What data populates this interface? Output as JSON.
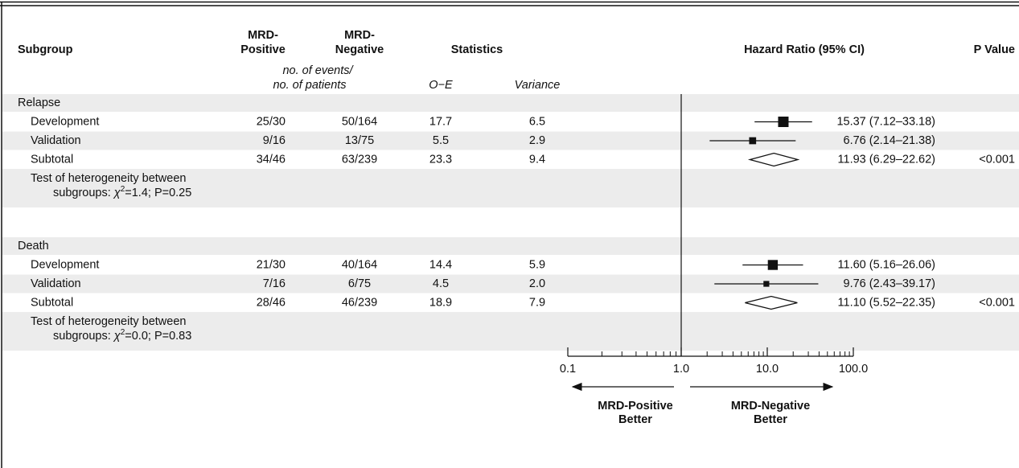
{
  "chart_data": {
    "type": "forest",
    "headers": {
      "subgroup": "Subgroup",
      "mrd_pos": [
        "MRD-",
        "Positive"
      ],
      "mrd_neg": [
        "MRD-",
        "Negative"
      ],
      "statistics": "Statistics",
      "hazard_ratio": "Hazard Ratio (95% CI)",
      "p_value": "P Value",
      "events": [
        "no. of events/",
        "no. of patients"
      ],
      "oe": "O−E",
      "variance": "Variance"
    },
    "groups": [
      {
        "label": "Relapse",
        "rows": [
          {
            "label": "Development",
            "mrd_pos": "25/30",
            "mrd_neg": "50/164",
            "oe": "17.7",
            "variance": "6.5",
            "hr": 15.37,
            "lo": 7.12,
            "hi": 33.18,
            "hr_label": "15.37 (7.12–33.18)"
          },
          {
            "label": "Validation",
            "mrd_pos": "9/16",
            "mrd_neg": "13/75",
            "oe": "5.5",
            "variance": "2.9",
            "hr": 6.76,
            "lo": 2.14,
            "hi": 21.38,
            "hr_label": "6.76 (2.14–21.38)"
          }
        ],
        "subtotal": {
          "label": "Subtotal",
          "mrd_pos": "34/46",
          "mrd_neg": "63/239",
          "oe": "23.3",
          "variance": "9.4",
          "hr": 11.93,
          "lo": 6.29,
          "hi": 22.62,
          "hr_label": "11.93 (6.29–22.62)",
          "p_value": "<0.001"
        },
        "heterogeneity": [
          "Test of heterogeneity between",
          "subgroups: ",
          "χ",
          "2",
          "=1.4; P=0.25"
        ]
      },
      {
        "label": "Death",
        "rows": [
          {
            "label": "Development",
            "mrd_pos": "21/30",
            "mrd_neg": "40/164",
            "oe": "14.4",
            "variance": "5.9",
            "hr": 11.6,
            "lo": 5.16,
            "hi": 26.06,
            "hr_label": "11.60 (5.16–26.06)"
          },
          {
            "label": "Validation",
            "mrd_pos": "7/16",
            "mrd_neg": "6/75",
            "oe": "4.5",
            "variance": "2.0",
            "hr": 9.76,
            "lo": 2.43,
            "hi": 39.17,
            "hr_label": "9.76 (2.43–39.17)"
          }
        ],
        "subtotal": {
          "label": "Subtotal",
          "mrd_pos": "28/46",
          "mrd_neg": "46/239",
          "oe": "18.9",
          "variance": "7.9",
          "hr": 11.1,
          "lo": 5.52,
          "hi": 22.35,
          "hr_label": "11.10 (5.52–22.35)",
          "p_value": "<0.001"
        },
        "heterogeneity": [
          "Test of heterogeneity between",
          "subgroups: ",
          "χ",
          "2",
          "=0.0; P=0.83"
        ]
      }
    ],
    "log_x": true,
    "xlim": [
      0.1,
      100
    ],
    "xticks": [
      {
        "value": 0.1,
        "label": "0.1"
      },
      {
        "value": 1,
        "label": "1.0"
      },
      {
        "value": 10,
        "label": "10.0"
      },
      {
        "value": 100,
        "label": "100.0"
      }
    ],
    "left_label": [
      "MRD-Positive",
      "Better"
    ],
    "right_label": [
      "MRD-Negative",
      "Better"
    ],
    "band_color": "#ececec"
  }
}
